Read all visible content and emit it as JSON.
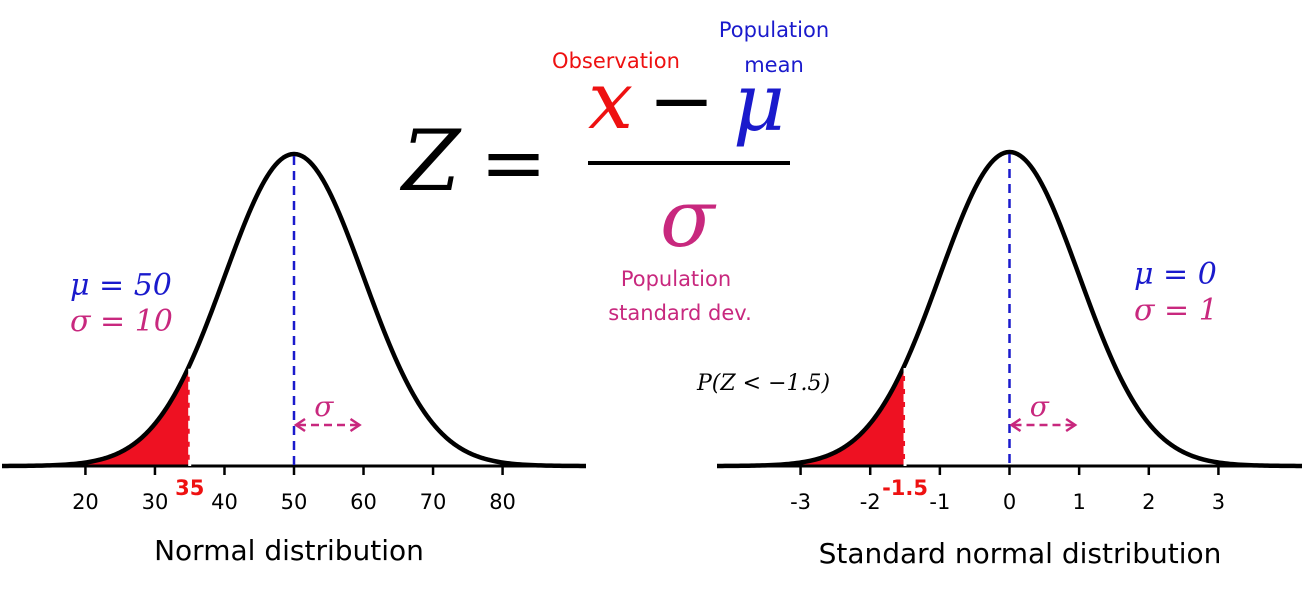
{
  "formula": {
    "lhs": "Z",
    "equals": "=",
    "observation_symbol": "x",
    "minus": "−",
    "mean_symbol": "μ",
    "sd_symbol": "σ",
    "observation_label": "Observation",
    "mean_label_line1": "Population",
    "mean_label_line2": "mean",
    "sd_label_line1": "Population",
    "sd_label_line2": "standard dev."
  },
  "left_panel": {
    "title": "Normal distribution",
    "mu_text": "μ = 50",
    "sigma_text": "σ = 10",
    "sigma_arrow_label": "σ",
    "mean": 50,
    "sd": 10,
    "cutoff": 35,
    "cutoff_label": "35",
    "ticks": [
      20,
      30,
      40,
      50,
      60,
      70,
      80
    ],
    "x_range": [
      8,
      92
    ]
  },
  "right_panel": {
    "title": "Standard normal distribution",
    "mu_text": "μ = 0",
    "sigma_text": "σ = 1",
    "sigma_arrow_label": "σ",
    "probability_label": "P(Z < −1.5)",
    "mean": 0,
    "sd": 1,
    "cutoff": -1.5,
    "cutoff_label": "-1.5",
    "ticks": [
      -3,
      -2,
      -1,
      0,
      1,
      2,
      3
    ],
    "x_range": [
      -4.2,
      4.2
    ]
  },
  "colors": {
    "observation": "#ee1111",
    "mean": "#1a1acc",
    "sd": "#c8287e",
    "curve": "#000000",
    "shade": "#ee1122"
  }
}
